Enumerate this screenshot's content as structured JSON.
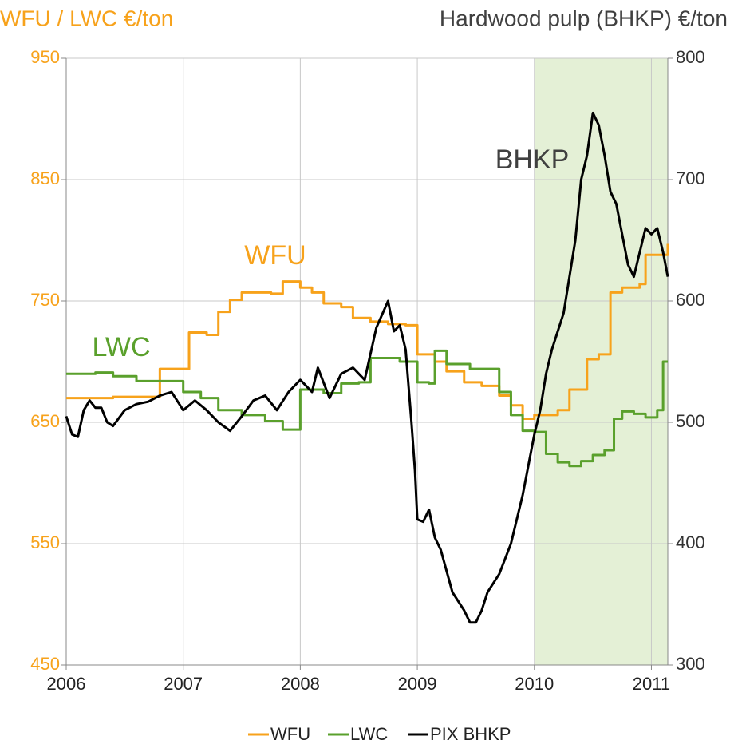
{
  "chart_data": {
    "type": "line",
    "title": "WFU / LWC  €/ton",
    "y2_title": "Hardwood pulp (BHKP) €/ton",
    "xlim": [
      2006,
      2011.14
    ],
    "xticks": [
      2006,
      2007,
      2008,
      2009,
      2010,
      2011
    ],
    "ylim": [
      450,
      950
    ],
    "yticks": [
      450,
      550,
      650,
      750,
      850,
      950
    ],
    "y2lim": [
      300,
      800
    ],
    "y2ticks": [
      300,
      400,
      500,
      600,
      700,
      800
    ],
    "grid": true,
    "legend": "bottom",
    "shaded_region": {
      "x": [
        2010,
        2011.14
      ],
      "color": "#e4f0d6"
    },
    "annotations": [
      {
        "text": "WFU",
        "color": "#f7a21b"
      },
      {
        "text": "LWC",
        "color": "#5aa02c"
      },
      {
        "text": "BHKP",
        "color": "#404040"
      }
    ],
    "series": [
      {
        "name": "WFU",
        "color": "#f7a21b",
        "axis": "y",
        "step": "post",
        "x": [
          2006.0,
          2006.4,
          2006.8,
          2007.05,
          2007.2,
          2007.3,
          2007.4,
          2007.5,
          2007.75,
          2007.85,
          2008.0,
          2008.1,
          2008.2,
          2008.35,
          2008.45,
          2008.6,
          2008.75,
          2008.9,
          2009.0,
          2009.15,
          2009.25,
          2009.4,
          2009.55,
          2009.7,
          2009.8,
          2009.9,
          2010.0,
          2010.2,
          2010.3,
          2010.45,
          2010.55,
          2010.65,
          2010.75,
          2010.9,
          2010.95,
          2011.14
        ],
        "values": [
          670,
          671,
          694,
          724,
          722,
          741,
          751,
          757,
          756,
          766,
          761,
          757,
          748,
          745,
          736,
          733,
          731,
          730,
          706,
          700,
          692,
          683,
          680,
          672,
          664,
          653,
          656,
          660,
          677,
          702,
          706,
          757,
          761,
          764,
          788,
          797
        ]
      },
      {
        "name": "LWC",
        "color": "#5aa02c",
        "axis": "y",
        "step": "post",
        "x": [
          2006.0,
          2006.25,
          2006.4,
          2006.6,
          2006.8,
          2007.0,
          2007.15,
          2007.3,
          2007.5,
          2007.7,
          2007.85,
          2008.0,
          2008.2,
          2008.35,
          2008.5,
          2008.6,
          2008.85,
          2009.0,
          2009.1,
          2009.15,
          2009.25,
          2009.45,
          2009.7,
          2009.8,
          2009.9,
          2010.0,
          2010.1,
          2010.2,
          2010.3,
          2010.4,
          2010.5,
          2010.6,
          2010.68,
          2010.75,
          2010.85,
          2010.95,
          2011.05,
          2011.1,
          2011.14
        ],
        "values": [
          690,
          691,
          688,
          684,
          684,
          675,
          670,
          660,
          656,
          651,
          644,
          677,
          674,
          682,
          683,
          703,
          700,
          683,
          682,
          709,
          698,
          694,
          675,
          656,
          643,
          642,
          624,
          617,
          614,
          618,
          623,
          627,
          653,
          659,
          657,
          654,
          660,
          700,
          700
        ]
      },
      {
        "name": "PIX BHKP",
        "color": "#000000",
        "axis": "y2",
        "x": [
          2006.0,
          2006.05,
          2006.1,
          2006.15,
          2006.2,
          2006.25,
          2006.3,
          2006.35,
          2006.4,
          2006.5,
          2006.6,
          2006.7,
          2006.8,
          2006.9,
          2007.0,
          2007.1,
          2007.2,
          2007.3,
          2007.4,
          2007.5,
          2007.6,
          2007.7,
          2007.8,
          2007.9,
          2008.0,
          2008.1,
          2008.15,
          2008.25,
          2008.35,
          2008.45,
          2008.55,
          2008.65,
          2008.75,
          2008.8,
          2008.85,
          2008.9,
          2008.95,
          2008.98,
          2009.0,
          2009.05,
          2009.1,
          2009.15,
          2009.2,
          2009.3,
          2009.4,
          2009.45,
          2009.5,
          2009.55,
          2009.6,
          2009.7,
          2009.8,
          2009.9,
          2010.0,
          2010.05,
          2010.1,
          2010.15,
          2010.2,
          2010.25,
          2010.3,
          2010.35,
          2010.4,
          2010.45,
          2010.5,
          2010.55,
          2010.6,
          2010.65,
          2010.7,
          2010.75,
          2010.8,
          2010.85,
          2010.9,
          2010.95,
          2011.0,
          2011.05,
          2011.1,
          2011.14
        ],
        "values": [
          505,
          490,
          488,
          510,
          518,
          512,
          512,
          500,
          497,
          510,
          515,
          517,
          522,
          525,
          510,
          518,
          510,
          500,
          493,
          505,
          518,
          522,
          510,
          525,
          535,
          525,
          545,
          520,
          540,
          545,
          535,
          578,
          600,
          575,
          580,
          560,
          500,
          460,
          420,
          418,
          428,
          405,
          395,
          360,
          345,
          335,
          335,
          345,
          360,
          375,
          400,
          440,
          490,
          510,
          540,
          560,
          575,
          590,
          620,
          650,
          700,
          720,
          755,
          745,
          720,
          690,
          680,
          655,
          630,
          620,
          640,
          660,
          655,
          660,
          640,
          620
        ]
      }
    ]
  }
}
